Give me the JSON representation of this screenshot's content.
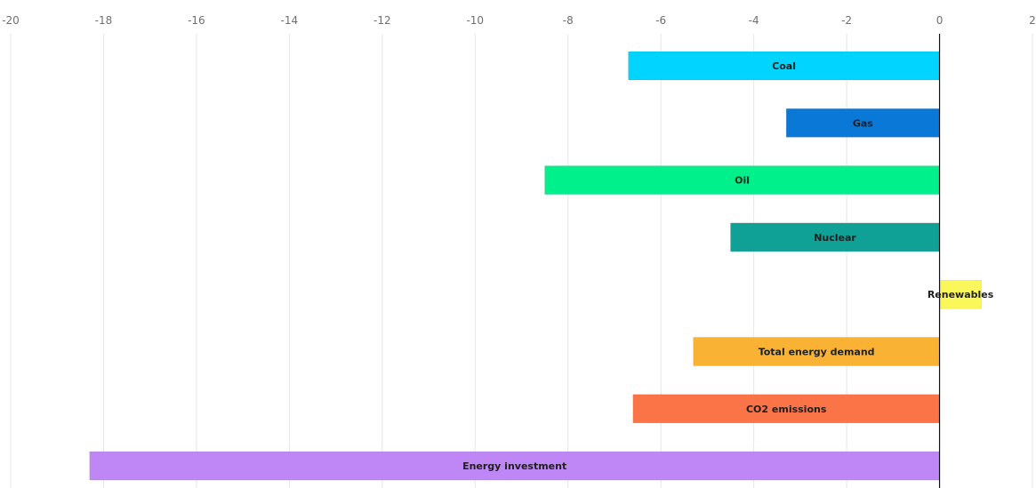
{
  "chart_data": {
    "type": "bar",
    "orientation": "horizontal",
    "categories": [
      "Coal",
      "Gas",
      "Oil",
      "Nuclear",
      "Renewables",
      "Total energy demand",
      "CO2 emissions",
      "Energy investment"
    ],
    "values": [
      -6.7,
      -3.3,
      -8.5,
      -4.5,
      0.9,
      -5.3,
      -6.6,
      -18.3
    ],
    "colors": [
      "#00d4ff",
      "#0a78d6",
      "#00f08c",
      "#0fa196",
      "#faf75a",
      "#f9b233",
      "#fb7447",
      "#bf86f6"
    ],
    "xlim": [
      -20,
      2
    ],
    "xticks": [
      -20,
      -18,
      -16,
      -14,
      -12,
      -10,
      -8,
      -6,
      -4,
      -2,
      0,
      2
    ],
    "xtick_labels": [
      "-20",
      "-18",
      "-16",
      "-14",
      "-12",
      "-10",
      "-8",
      "-6",
      "-4",
      "-2",
      "0",
      "2"
    ],
    "grid": true,
    "title": "",
    "xlabel": "",
    "ylabel": ""
  }
}
